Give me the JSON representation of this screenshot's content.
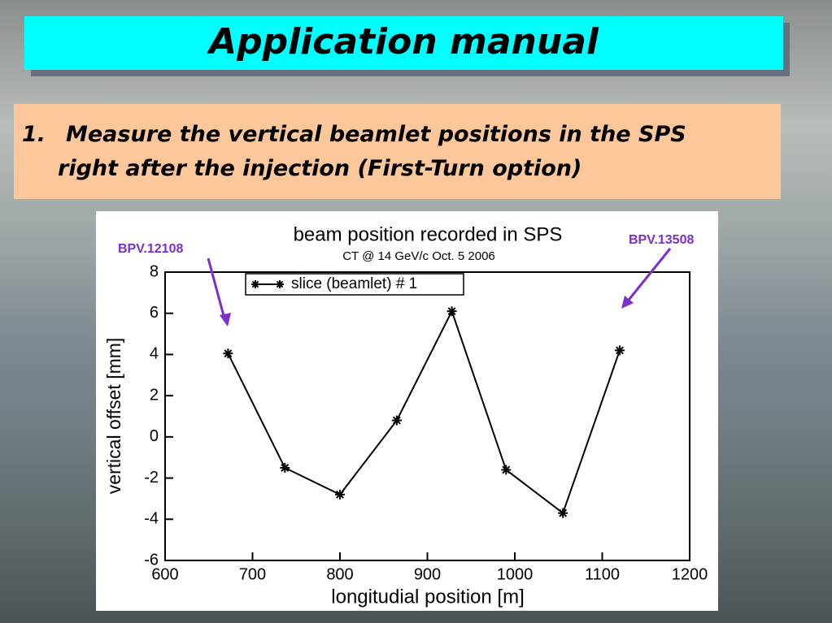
{
  "slide": {
    "title": "Application manual",
    "item_number": "1.",
    "item_lines": [
      "Measure the vertical beamlet positions in the SPS",
      "right after the injection (First-Turn option)"
    ]
  },
  "chart_data": {
    "type": "line",
    "title": "beam position recorded in SPS",
    "subtitle": "CT @ 14 GeV/c  Oct. 5 2006",
    "x_label": "longitudial position [m]",
    "y_label": "vertical offset [mm]",
    "x": [
      672,
      737,
      800,
      865,
      928,
      990,
      1055,
      1120
    ],
    "series": [
      {
        "name": "slice (beamlet) # 1",
        "color": "#000000",
        "values": [
          4.05,
          -1.5,
          -2.8,
          0.8,
          6.1,
          -1.6,
          -3.7,
          4.2
        ]
      }
    ],
    "xlim": [
      600,
      1200
    ],
    "xticks": [
      600,
      700,
      800,
      900,
      1000,
      1100,
      1200
    ],
    "ylim": [
      -6,
      8
    ],
    "yticks": [
      -6,
      -4,
      -2,
      0,
      2,
      4,
      6,
      8
    ],
    "annotations": [
      "BPV.12108",
      "BPV.13508"
    ],
    "annotation_color": "#7b2fd0",
    "legend": "upper left"
  }
}
